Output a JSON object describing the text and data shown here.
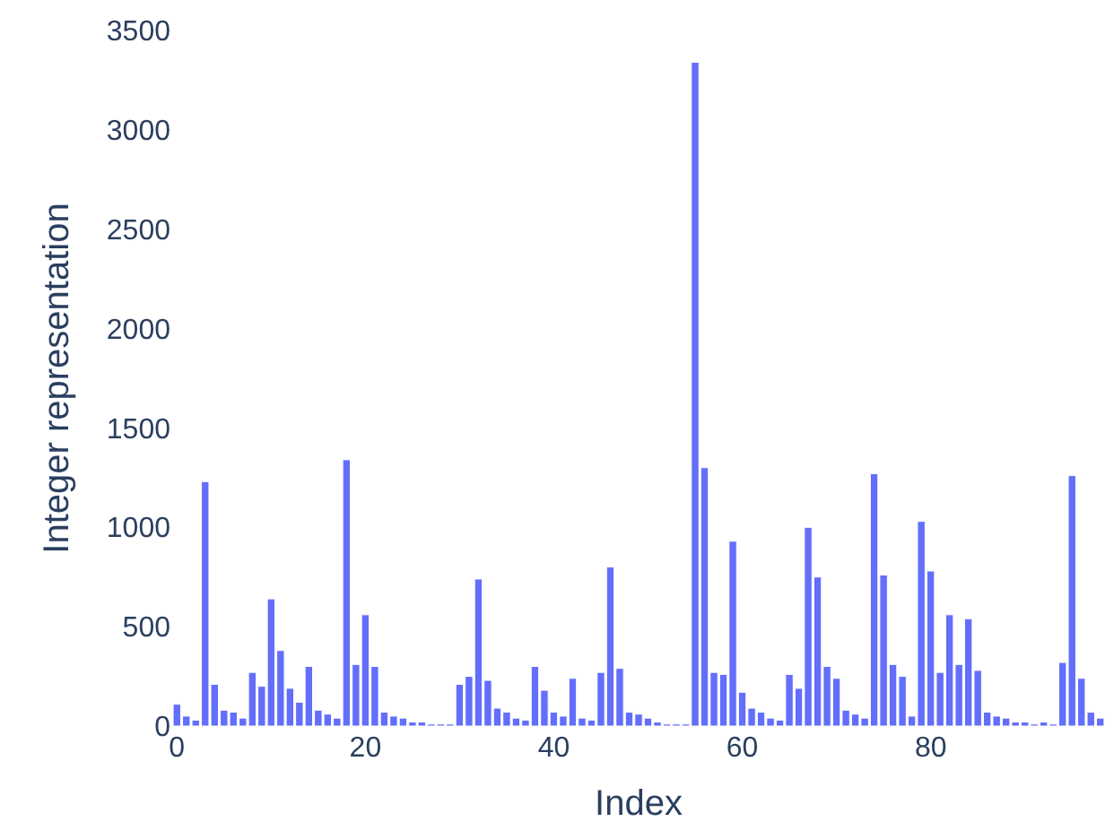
{
  "chart_data": {
    "type": "bar",
    "xlabel": "Index",
    "ylabel": "Integer representation",
    "color": "#636efa",
    "x": [
      0,
      1,
      2,
      3,
      4,
      5,
      6,
      7,
      8,
      9,
      10,
      11,
      12,
      13,
      14,
      15,
      16,
      17,
      18,
      19,
      20,
      21,
      22,
      23,
      24,
      25,
      26,
      27,
      28,
      29,
      30,
      31,
      32,
      33,
      34,
      35,
      36,
      37,
      38,
      39,
      40,
      41,
      42,
      43,
      44,
      45,
      46,
      47,
      48,
      49,
      50,
      51,
      52,
      53,
      54,
      55,
      56,
      57,
      58,
      59,
      60,
      61,
      62,
      63,
      64,
      65,
      66,
      67,
      68,
      69,
      70,
      71,
      72,
      73,
      74,
      75,
      76,
      77,
      78,
      79,
      80,
      81,
      82,
      83,
      84,
      85,
      86,
      87,
      88,
      89,
      90,
      91,
      92,
      93,
      94,
      95,
      96,
      97,
      98
    ],
    "values": [
      110,
      50,
      30,
      1230,
      210,
      80,
      70,
      40,
      270,
      200,
      640,
      380,
      190,
      120,
      300,
      80,
      60,
      40,
      1340,
      310,
      560,
      300,
      70,
      50,
      40,
      20,
      20,
      10,
      10,
      10,
      210,
      250,
      740,
      230,
      90,
      70,
      40,
      30,
      300,
      180,
      70,
      50,
      240,
      40,
      30,
      270,
      800,
      290,
      70,
      60,
      40,
      20,
      10,
      10,
      10,
      3340,
      1300,
      270,
      260,
      930,
      170,
      90,
      70,
      40,
      30,
      260,
      190,
      1000,
      750,
      300,
      240,
      80,
      60,
      40,
      1270,
      760,
      310,
      250,
      50,
      1030,
      780,
      270,
      560,
      310,
      540,
      280,
      70,
      50,
      40,
      20,
      20,
      10,
      20,
      10,
      320,
      1260,
      240,
      70,
      40
    ],
    "xlim": [
      -0.5,
      98.5
    ],
    "xticks": [
      0,
      20,
      40,
      60,
      80
    ],
    "ylim": [
      0,
      3500
    ],
    "yticks": [
      0,
      500,
      1000,
      1500,
      2000,
      2500,
      3000,
      3500
    ],
    "grid": false
  }
}
